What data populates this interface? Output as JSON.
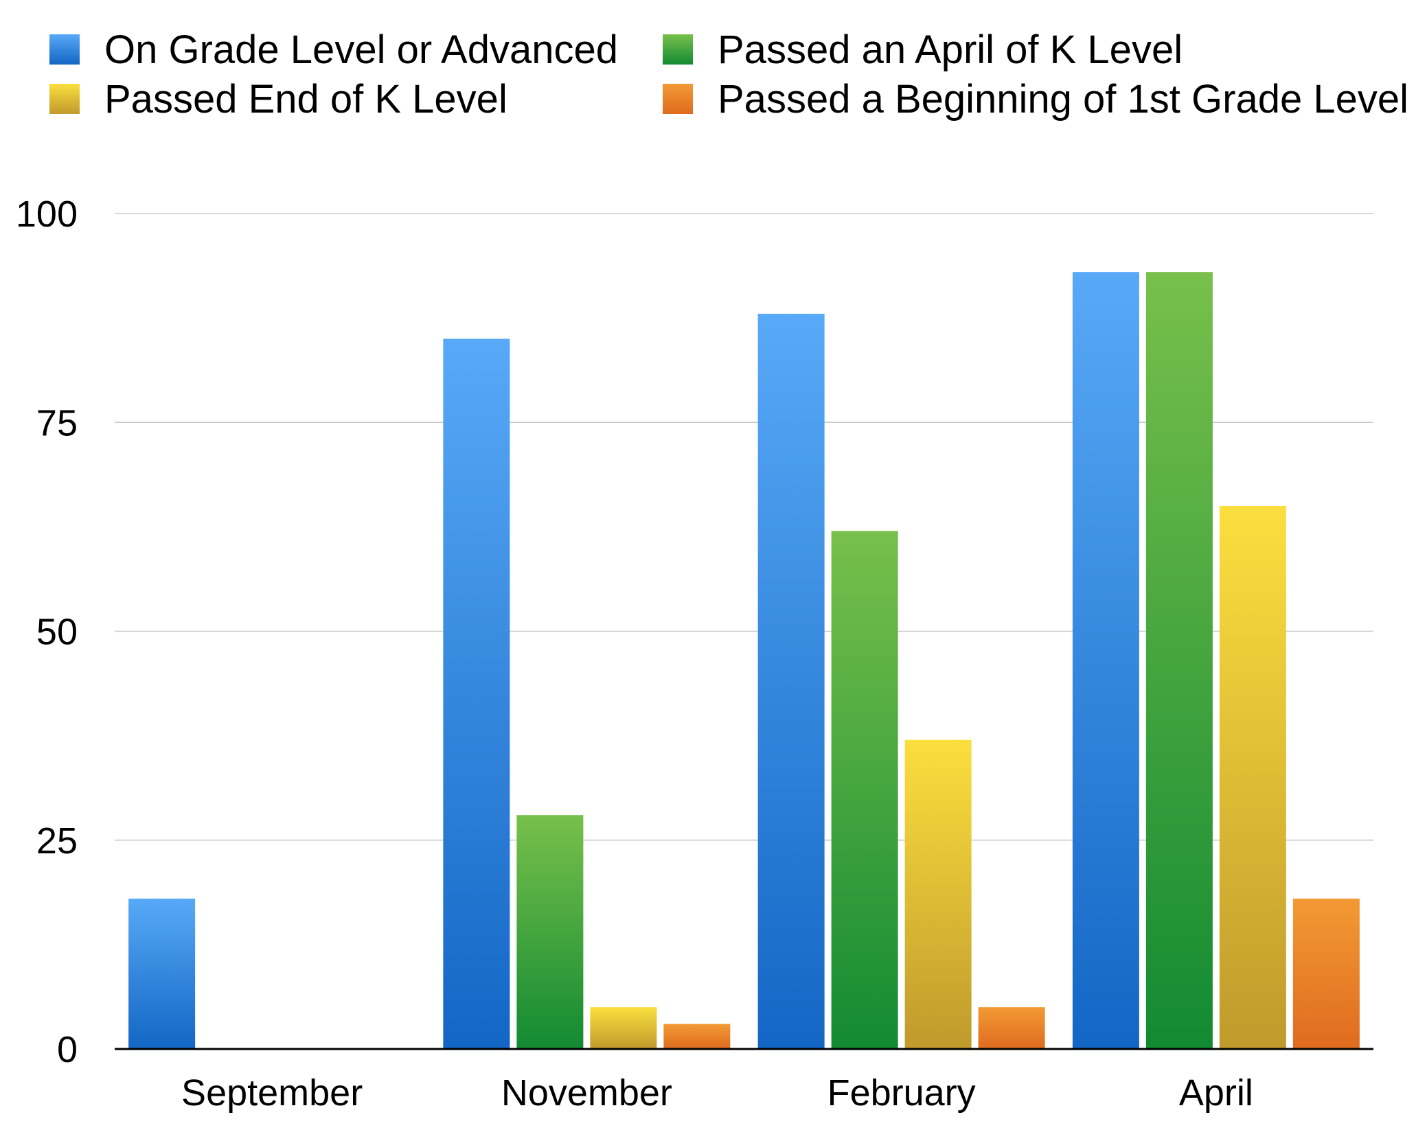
{
  "chart_data": {
    "type": "bar",
    "categories": [
      "September",
      "November",
      "February",
      "April"
    ],
    "series": [
      {
        "name": "On Grade Level or Advanced",
        "values": [
          18,
          85,
          88,
          93
        ],
        "color_top": "#58a9f7",
        "color_bottom": "#1366c4"
      },
      {
        "name": "Passed an April of K Level",
        "values": [
          0,
          28,
          62,
          93
        ],
        "color_top": "#78c04b",
        "color_bottom": "#128a32"
      },
      {
        "name": "Passed End of K Level",
        "values": [
          0,
          5,
          37,
          65
        ],
        "color_top": "#fbdf3e",
        "color_bottom": "#c09a2c"
      },
      {
        "name": "Passed a Beginning of 1st Grade Level",
        "values": [
          0,
          3,
          5,
          18
        ],
        "color_top": "#f39a34",
        "color_bottom": "#df6b1f"
      }
    ],
    "legend_order": [
      0,
      1,
      2,
      3
    ],
    "legend_placement": "top",
    "yticks": [
      0,
      25,
      50,
      75,
      100
    ],
    "ylim": [
      0,
      100
    ],
    "grid": true,
    "title": "",
    "xlabel": "",
    "ylabel": ""
  }
}
